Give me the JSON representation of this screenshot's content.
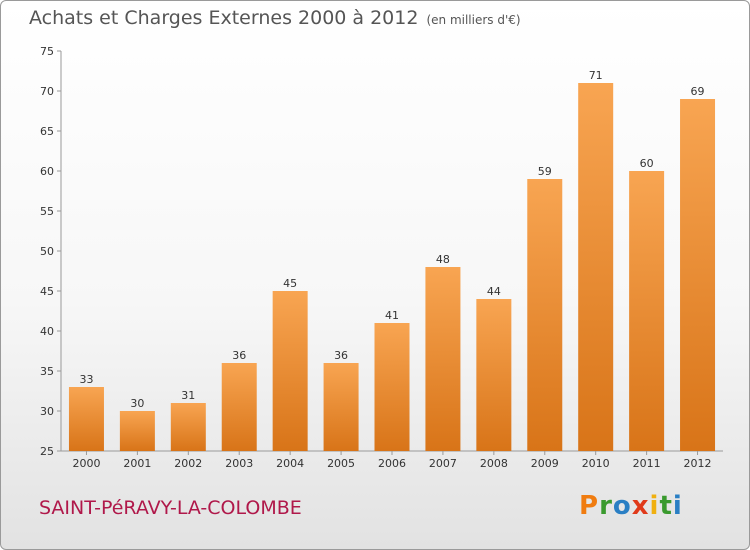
{
  "title": "Achats et Charges Externes 2000 à 2012",
  "subtitle": "(en milliers d'€)",
  "commune": "SAINT-PéRAVY-LA-COLOMBE",
  "logo": {
    "letters": [
      "P",
      "r",
      "o",
      "x",
      "i",
      "t",
      "i"
    ],
    "colors": [
      "#f07c10",
      "#3a9a2e",
      "#2a7fc4",
      "#e03a1a",
      "#f0b010",
      "#3a9a2e",
      "#2a7fc4"
    ]
  },
  "chart_data": {
    "type": "bar",
    "categories": [
      "2000",
      "2001",
      "2002",
      "2003",
      "2004",
      "2005",
      "2006",
      "2007",
      "2008",
      "2009",
      "2010",
      "2011",
      "2012"
    ],
    "values": [
      33,
      30,
      31,
      36,
      45,
      36,
      41,
      48,
      44,
      59,
      71,
      60,
      69
    ],
    "ylim": [
      25,
      75
    ],
    "yticks": [
      25,
      30,
      35,
      40,
      45,
      50,
      55,
      60,
      65,
      70,
      75
    ],
    "grid": false,
    "bar_color_top": "#f8a552",
    "bar_color_bottom": "#d87418"
  }
}
